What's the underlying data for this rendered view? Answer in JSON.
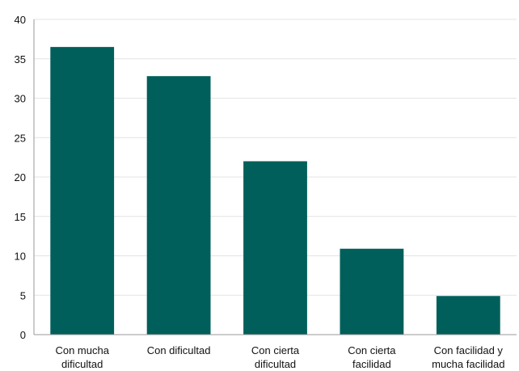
{
  "chart_data": {
    "type": "bar",
    "title": "",
    "xlabel": "",
    "ylabel": "",
    "categories": [
      [
        "Con mucha",
        "dificultad"
      ],
      [
        "Con dificultad"
      ],
      [
        "Con cierta",
        "dificultad"
      ],
      [
        "Con cierta",
        "facilidad"
      ],
      [
        "Con facilidad y",
        "mucha facilidad"
      ]
    ],
    "values": [
      36.5,
      32.8,
      22.0,
      10.9,
      4.9
    ],
    "ylim": [
      0,
      40
    ],
    "yticks": [
      0,
      5,
      10,
      15,
      20,
      25,
      30,
      35,
      40
    ],
    "grid": true,
    "legend": "none",
    "bar_color": "#005f5a"
  }
}
